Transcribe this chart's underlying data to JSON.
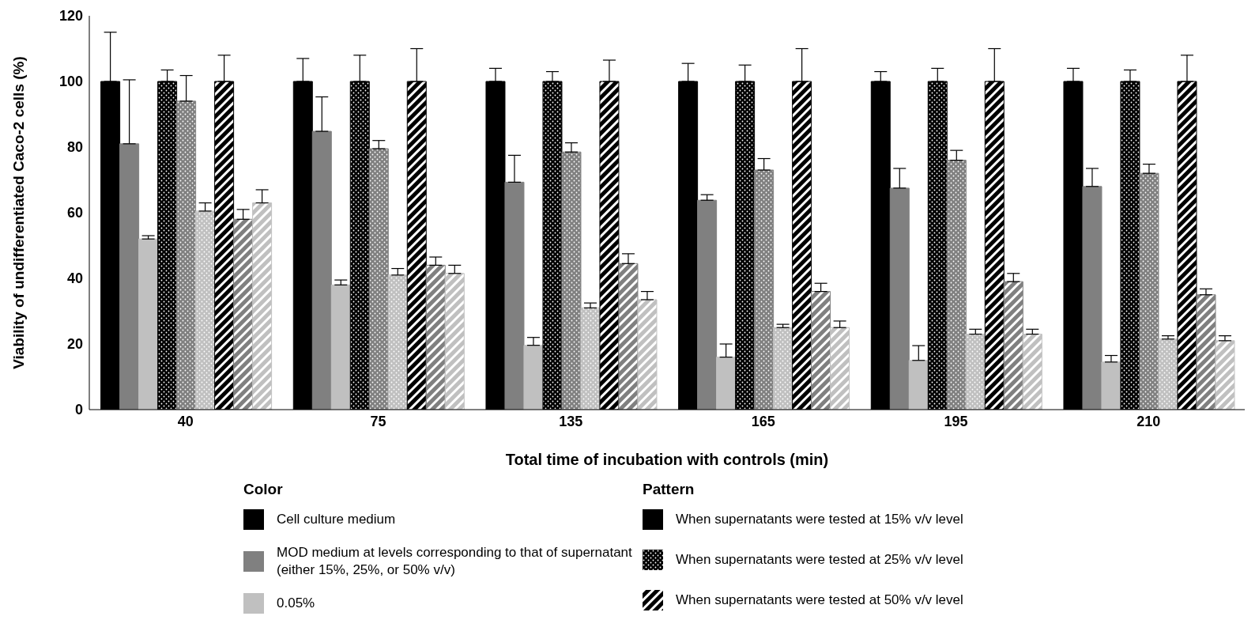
{
  "chart_data": {
    "type": "bar",
    "xlabel": "Total time of incubation with controls (min)",
    "ylabel": "Viability of undifferentiated Caco-2 cells (%)",
    "categories": [
      "40",
      "75",
      "135",
      "165",
      "195",
      "210"
    ],
    "ylim": [
      0,
      120
    ],
    "yticks": [
      0,
      20,
      40,
      60,
      80,
      100,
      120
    ],
    "grid": false,
    "series": [
      {
        "color": "#000000",
        "values": [
          100,
          100,
          100,
          100,
          100,
          100
        ],
        "errors": [
          [
            100,
            115
          ],
          [
            100,
            107
          ],
          [
            100,
            104
          ],
          [
            100,
            105.5
          ],
          [
            100,
            103
          ],
          [
            100,
            104
          ]
        ]
      },
      {
        "color": "#808080",
        "values": [
          81,
          84.8,
          69.3,
          63.8,
          67.5,
          68
        ],
        "errors": [
          [
            81,
            100.5
          ],
          [
            84.8,
            95.3
          ],
          [
            69.3,
            77.5
          ],
          [
            63.8,
            65.5
          ],
          [
            67.5,
            73.5
          ],
          [
            68,
            73.5
          ]
        ]
      },
      {
        "color": "#c0c0c0",
        "values": [
          52,
          38,
          19.6,
          16,
          15,
          14.5
        ],
        "errors": [
          [
            52,
            53
          ],
          [
            38,
            39.5
          ],
          [
            19.6,
            22
          ],
          [
            16,
            20
          ],
          [
            15,
            19.5
          ],
          [
            14.5,
            16.5
          ]
        ]
      },
      {
        "color": "#000000",
        "values": [
          100,
          100,
          100,
          100,
          100,
          100
        ],
        "errors": [
          [
            100,
            103.5
          ],
          [
            100,
            108
          ],
          [
            100,
            103
          ],
          [
            100,
            105
          ],
          [
            100,
            104
          ],
          [
            100,
            103.5
          ]
        ]
      },
      {
        "color": "#808080",
        "values": [
          94,
          79.5,
          78.5,
          73,
          76,
          72
        ],
        "errors": [
          [
            94,
            101.8
          ],
          [
            79.5,
            82
          ],
          [
            78.5,
            81.3
          ],
          [
            73,
            76.5
          ],
          [
            76,
            79
          ],
          [
            72,
            74.8
          ]
        ]
      },
      {
        "color": "#c0c0c0",
        "values": [
          60.5,
          41,
          31,
          25,
          23,
          21.5
        ],
        "errors": [
          [
            60.5,
            63
          ],
          [
            41,
            43
          ],
          [
            31,
            32.5
          ],
          [
            25,
            26
          ],
          [
            23,
            24.5
          ],
          [
            21.5,
            22.5
          ]
        ]
      },
      {
        "color": "#000000",
        "values": [
          100,
          100,
          100,
          100,
          100,
          100
        ],
        "errors": [
          [
            100,
            108
          ],
          [
            100,
            110
          ],
          [
            100,
            106.5
          ],
          [
            100,
            110
          ],
          [
            100,
            110
          ],
          [
            100,
            108
          ]
        ]
      },
      {
        "color": "#808080",
        "values": [
          58,
          44,
          44.5,
          36,
          39,
          35
        ],
        "errors": [
          [
            58,
            61
          ],
          [
            44,
            46.5
          ],
          [
            44.5,
            47.5
          ],
          [
            36,
            38.5
          ],
          [
            39,
            41.5
          ],
          [
            35,
            36.8
          ]
        ]
      },
      {
        "color": "#c0c0c0",
        "values": [
          63,
          41.5,
          33.5,
          25,
          23,
          21
        ],
        "errors": [
          [
            63,
            67
          ],
          [
            41.5,
            44
          ],
          [
            33.5,
            36
          ],
          [
            25,
            27
          ],
          [
            23,
            24.5
          ],
          [
            21,
            22.5
          ]
        ]
      }
    ],
    "annotations": [
      "Color",
      "Cell culture medium",
      "MOD medium at levels corresponding to that of supernatant (either 15%, 25%, or 50% v/v)",
      "0.05%",
      "Pattern",
      "When supernatants were tested at 15% v/v level",
      "When supernatants were tested at 25% v/v level",
      "When supernatants were tested at 50% v/v level"
    ]
  }
}
